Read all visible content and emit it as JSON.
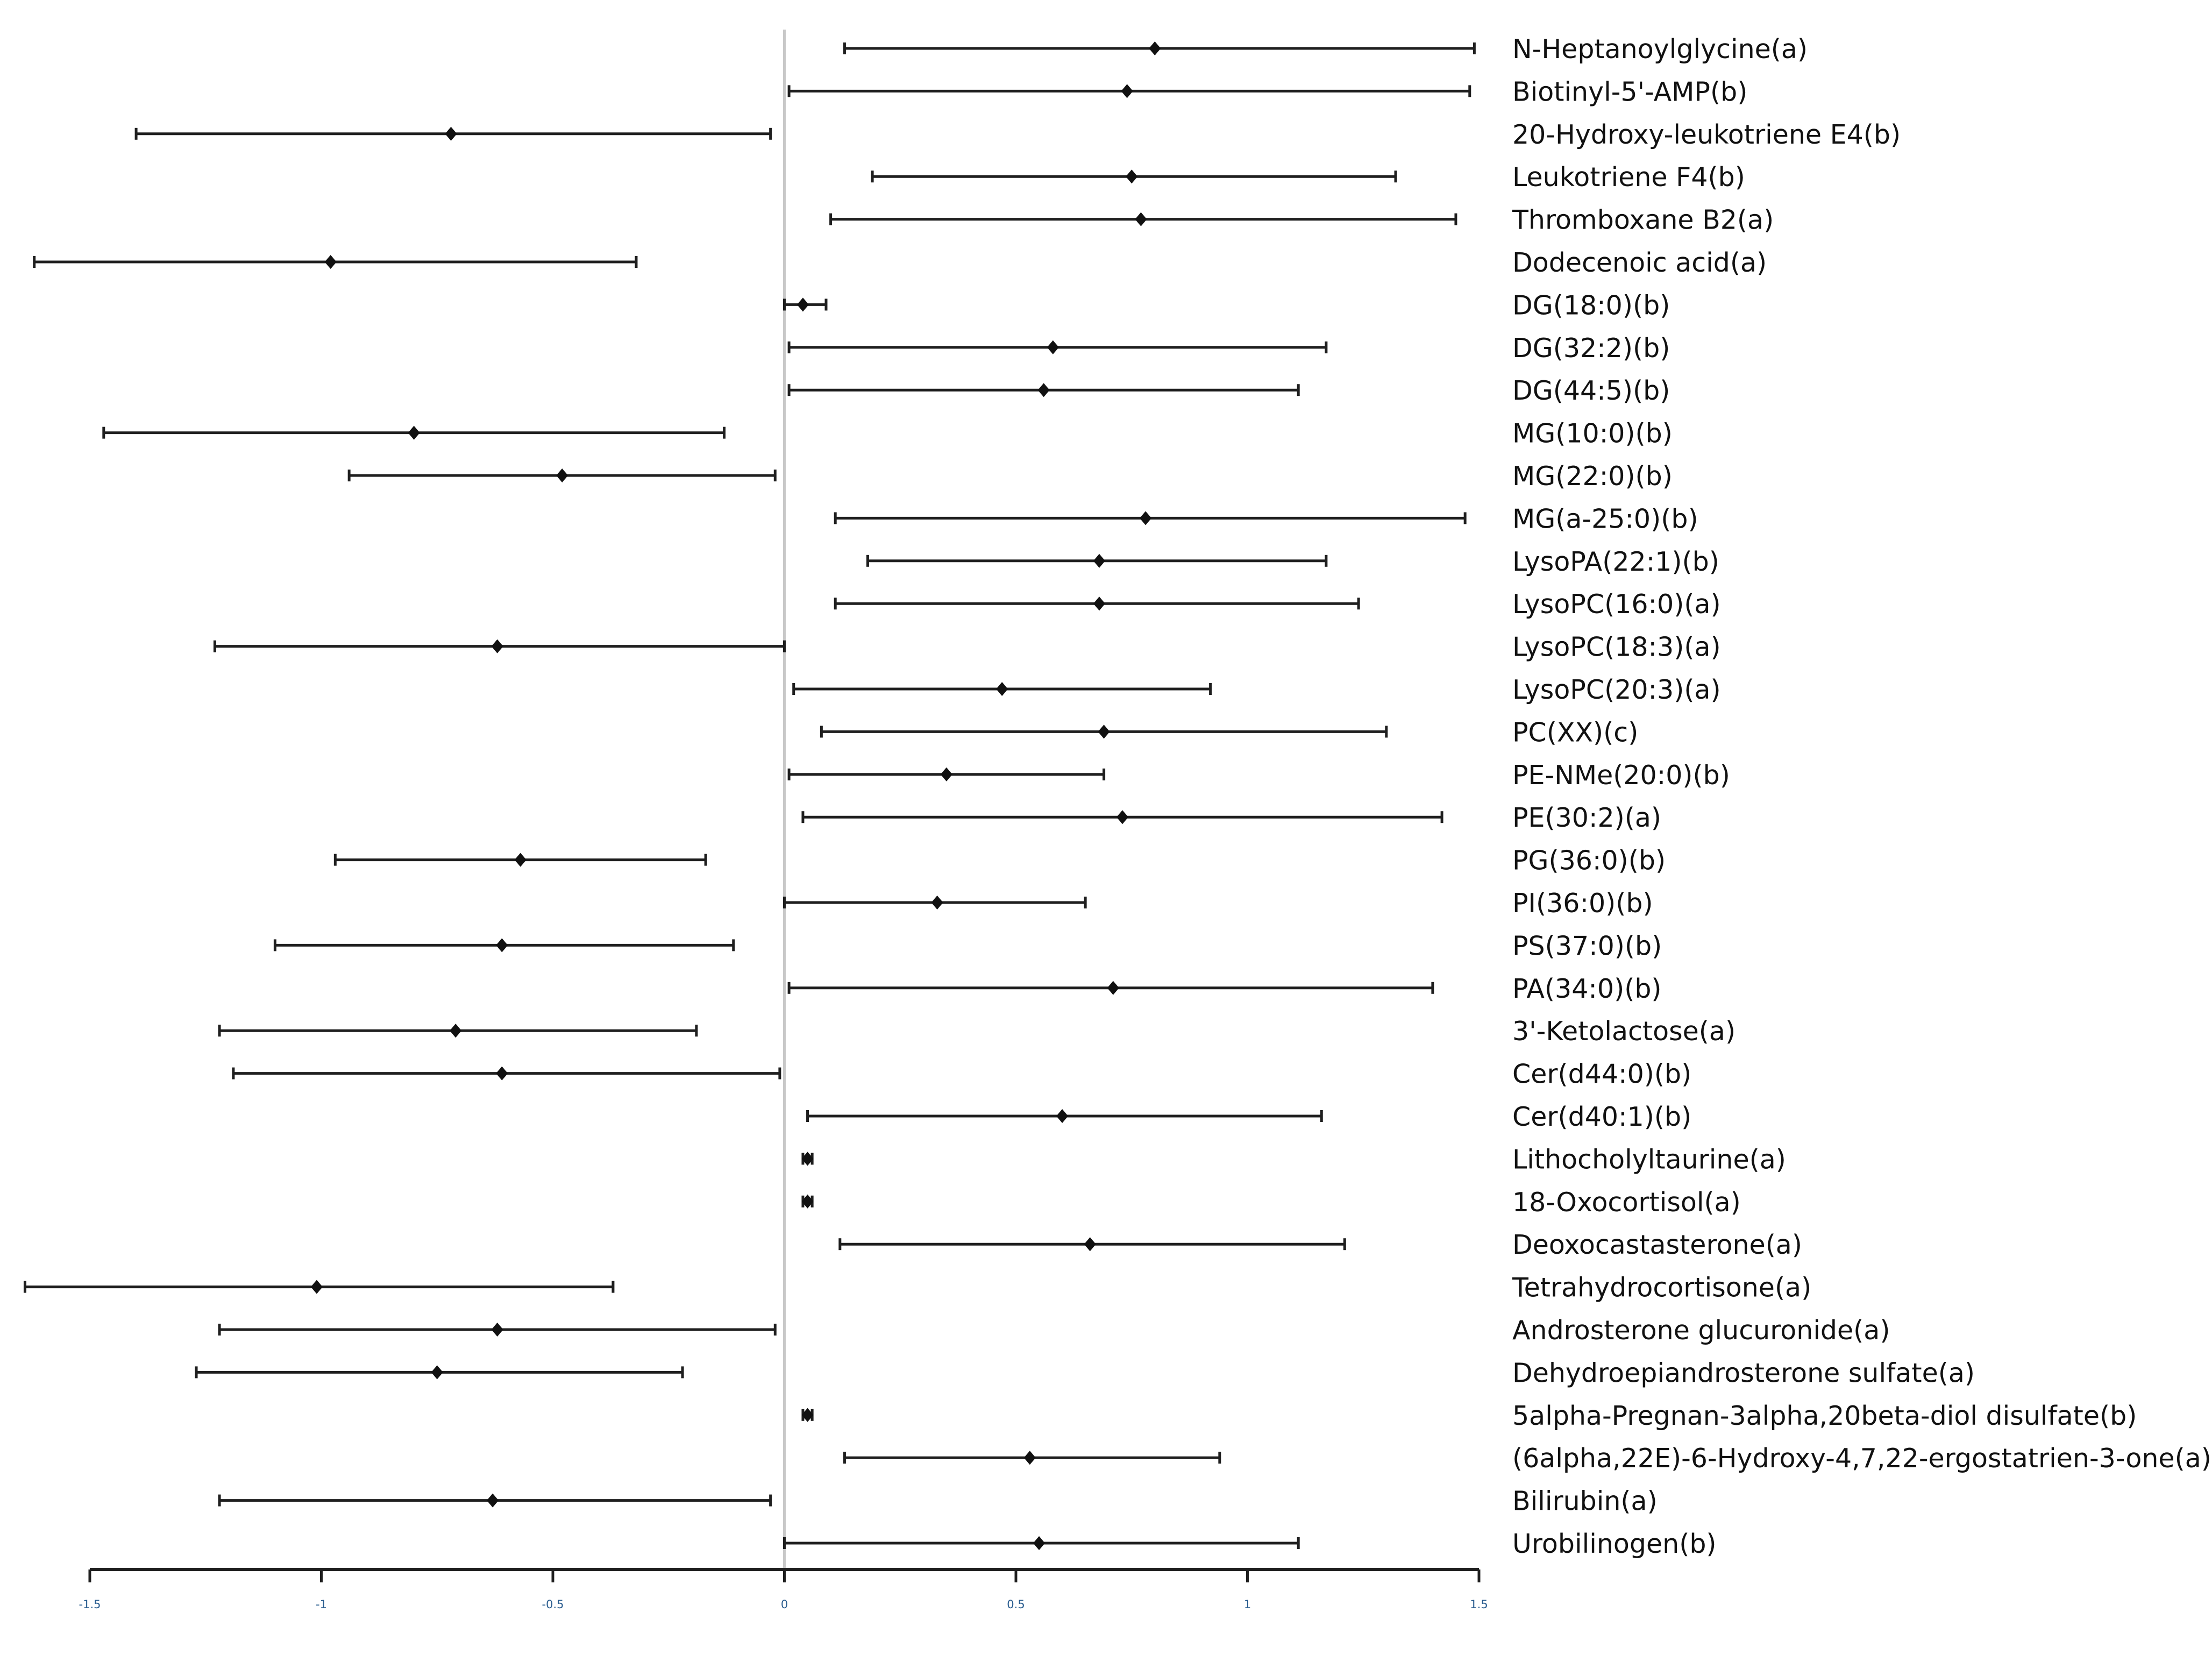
{
  "chart_data": {
    "type": "forest",
    "title": "",
    "xlabel": "",
    "ylabel": "",
    "xlim": [
      -1.5,
      1.5
    ],
    "xticks": [
      -1.5,
      -1,
      -0.5,
      0,
      0.5,
      1,
      1.5
    ],
    "xtick_labels": [
      "-1.5",
      "-1",
      "-0.5",
      "0",
      "0.5",
      "1",
      "1.5"
    ],
    "reference_line": 0,
    "rows": [
      {
        "label": "N-Heptanoylglycine(a)",
        "estimate": 0.8,
        "lower": 0.13,
        "upper": 1.49
      },
      {
        "label": "Biotinyl-5'-AMP(b)",
        "estimate": 0.74,
        "lower": 0.01,
        "upper": 1.48
      },
      {
        "label": "20-Hydroxy-leukotriene E4(b)",
        "estimate": -0.72,
        "lower": -1.4,
        "upper": -0.03
      },
      {
        "label": "Leukotriene F4(b)",
        "estimate": 0.75,
        "lower": 0.19,
        "upper": 1.32
      },
      {
        "label": "Thromboxane B2(a)",
        "estimate": 0.77,
        "lower": 0.1,
        "upper": 1.45
      },
      {
        "label": "Dodecenoic acid(a)",
        "estimate": -0.98,
        "lower": -1.62,
        "upper": -0.32
      },
      {
        "label": "DG(18:0)(b)",
        "estimate": 0.04,
        "lower": 0.0,
        "upper": 0.09
      },
      {
        "label": "DG(32:2)(b)",
        "estimate": 0.58,
        "lower": 0.01,
        "upper": 1.17
      },
      {
        "label": "DG(44:5)(b)",
        "estimate": 0.56,
        "lower": 0.01,
        "upper": 1.11
      },
      {
        "label": "MG(10:0)(b)",
        "estimate": -0.8,
        "lower": -1.47,
        "upper": -0.13
      },
      {
        "label": "MG(22:0)(b)",
        "estimate": -0.48,
        "lower": -0.94,
        "upper": -0.02
      },
      {
        "label": "MG(a-25:0)(b)",
        "estimate": 0.78,
        "lower": 0.11,
        "upper": 1.47
      },
      {
        "label": "LysoPA(22:1)(b)",
        "estimate": 0.68,
        "lower": 0.18,
        "upper": 1.17
      },
      {
        "label": "LysoPC(16:0)(a)",
        "estimate": 0.68,
        "lower": 0.11,
        "upper": 1.24
      },
      {
        "label": "LysoPC(18:3)(a)",
        "estimate": -0.62,
        "lower": -1.23,
        "upper": 0.0
      },
      {
        "label": "LysoPC(20:3)(a)",
        "estimate": 0.47,
        "lower": 0.02,
        "upper": 0.92
      },
      {
        "label": "PC(XX)(c)",
        "estimate": 0.69,
        "lower": 0.08,
        "upper": 1.3
      },
      {
        "label": "PE-NMe(20:0)(b)",
        "estimate": 0.35,
        "lower": 0.01,
        "upper": 0.69
      },
      {
        "label": "PE(30:2)(a)",
        "estimate": 0.73,
        "lower": 0.04,
        "upper": 1.42
      },
      {
        "label": "PG(36:0)(b)",
        "estimate": -0.57,
        "lower": -0.97,
        "upper": -0.17
      },
      {
        "label": "PI(36:0)(b)",
        "estimate": 0.33,
        "lower": 0.0,
        "upper": 0.65
      },
      {
        "label": "PS(37:0)(b)",
        "estimate": -0.61,
        "lower": -1.1,
        "upper": -0.11
      },
      {
        "label": "PA(34:0)(b)",
        "estimate": 0.71,
        "lower": 0.01,
        "upper": 1.4
      },
      {
        "label": "3'-Ketolactose(a)",
        "estimate": -0.71,
        "lower": -1.22,
        "upper": -0.19
      },
      {
        "label": "Cer(d44:0)(b)",
        "estimate": -0.61,
        "lower": -1.19,
        "upper": -0.01
      },
      {
        "label": "Cer(d40:1)(b)",
        "estimate": 0.6,
        "lower": 0.05,
        "upper": 1.16
      },
      {
        "label": "Lithocholyltaurine(a)",
        "estimate": 0.05,
        "lower": 0.04,
        "upper": 0.06
      },
      {
        "label": "18-Oxocortisol(a)",
        "estimate": 0.05,
        "lower": 0.04,
        "upper": 0.06
      },
      {
        "label": "Deoxocastasterone(a)",
        "estimate": 0.66,
        "lower": 0.12,
        "upper": 1.21
      },
      {
        "label": "Tetrahydrocortisone(a)",
        "estimate": -1.01,
        "lower": -1.64,
        "upper": -0.37
      },
      {
        "label": "Androsterone glucuronide(a)",
        "estimate": -0.62,
        "lower": -1.22,
        "upper": -0.02
      },
      {
        "label": "Dehydroepiandrosterone sulfate(a)",
        "estimate": -0.75,
        "lower": -1.27,
        "upper": -0.22
      },
      {
        "label": "5alpha-Pregnan-3alpha,20beta-diol disulfate(b)",
        "estimate": 0.05,
        "lower": 0.04,
        "upper": 0.06
      },
      {
        "label": "(6alpha,22E)-6-Hydroxy-4,7,22-ergostatrien-3-one(a)",
        "estimate": 0.53,
        "lower": 0.13,
        "upper": 0.94
      },
      {
        "label": "Bilirubin(a)",
        "estimate": -0.63,
        "lower": -1.22,
        "upper": -0.03
      },
      {
        "label": "Urobilinogen(b)",
        "estimate": 0.55,
        "lower": 0.0,
        "upper": 1.11
      }
    ]
  }
}
